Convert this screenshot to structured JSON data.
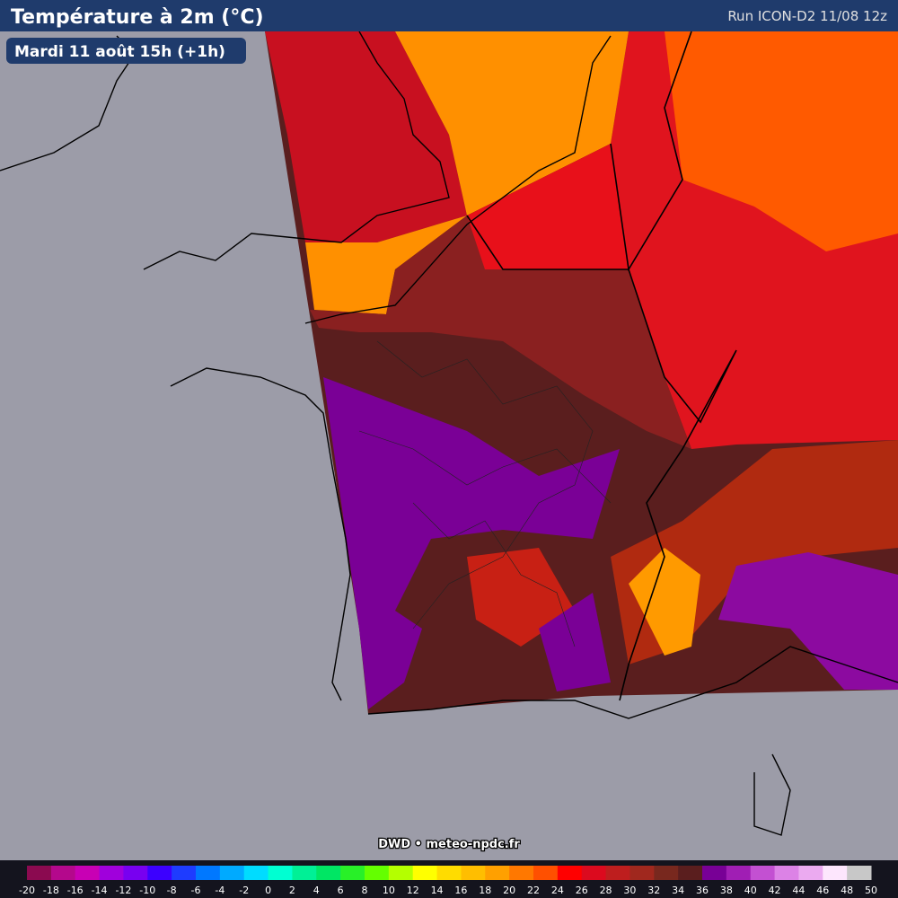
{
  "header": {
    "title": "Température à 2m (°C)",
    "run": "Run ICON-D2 11/08 12z",
    "valid": "Mardi 11 août 15h (+1h)"
  },
  "credit": "DWD • meteo-npdc.fr",
  "legend": {
    "labels": [
      -20,
      -18,
      -16,
      -14,
      -12,
      -10,
      -8,
      -6,
      -4,
      -2,
      0,
      2,
      4,
      6,
      8,
      10,
      12,
      14,
      16,
      18,
      20,
      22,
      24,
      26,
      28,
      30,
      32,
      34,
      36,
      38,
      40,
      42,
      44,
      46,
      48,
      50
    ],
    "colors": [
      "#8b0a50",
      "#b4088c",
      "#c800b4",
      "#a000dc",
      "#7800f0",
      "#3c00ff",
      "#1e3cff",
      "#0078ff",
      "#00aaff",
      "#00dcff",
      "#00ffd2",
      "#00f096",
      "#00e664",
      "#28f028",
      "#64ff00",
      "#b4ff00",
      "#ffff00",
      "#ffdc00",
      "#ffbe00",
      "#ffa000",
      "#ff7800",
      "#ff5000",
      "#ff0000",
      "#dc0a1e",
      "#be1e1e",
      "#a0281e",
      "#78281e",
      "#5a1e1e",
      "#780096",
      "#a01eb4",
      "#c350d2",
      "#dc82e6",
      "#ebaaf0",
      "#fde6fd",
      "#c8c8c8"
    ]
  }
}
